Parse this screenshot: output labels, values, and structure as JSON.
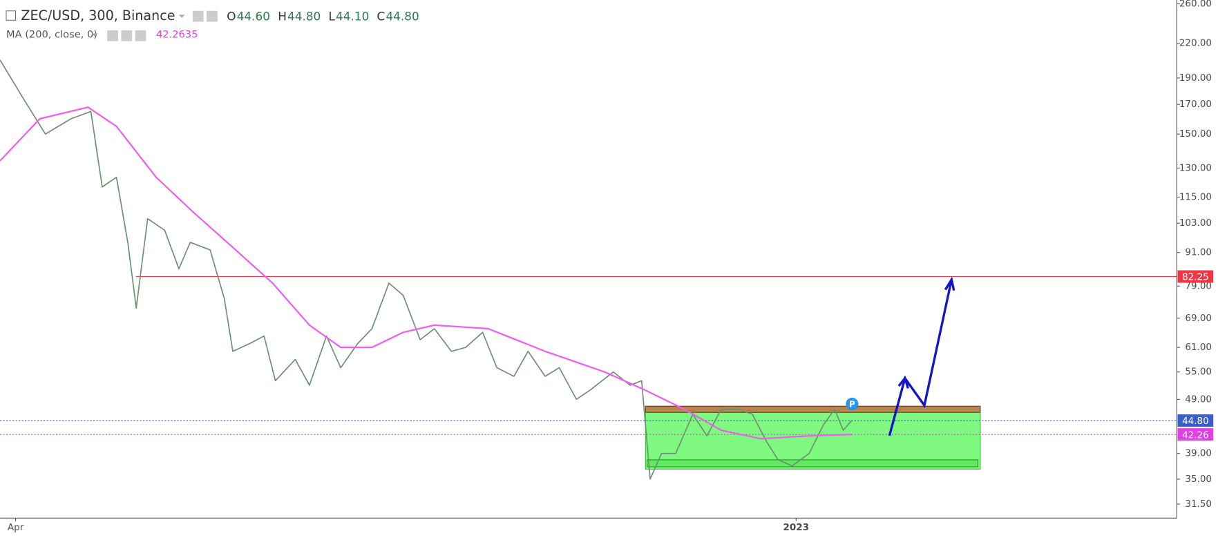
{
  "chart_data": {
    "type": "line",
    "title": "ZEC/USD, 300, Binance",
    "ohlc": [
      {
        "key": "O",
        "value": "44.60"
      },
      {
        "key": "H",
        "value": "44.80"
      },
      {
        "key": "L",
        "value": "44.10"
      },
      {
        "key": "C",
        "value": "44.80"
      }
    ],
    "indicator": {
      "name": "MA (200, close, 0)",
      "value": "42.2635",
      "color": "#e040e6"
    },
    "marker": "P",
    "log_scale": true,
    "grid": false,
    "xlim": [
      0,
      414.5
    ],
    "xticks": [
      {
        "value": 5.5,
        "label": "Apr"
      },
      {
        "value": 280.4,
        "label": "2023"
      }
    ],
    "ylim": [
      29.7,
      264
    ],
    "yticks": [
      {
        "value": 260,
        "label": "260.00"
      },
      {
        "value": 220,
        "label": "220.00"
      },
      {
        "value": 190,
        "label": "190.00"
      },
      {
        "value": 170,
        "label": "170.00"
      },
      {
        "value": 150,
        "label": "150.00"
      },
      {
        "value": 130,
        "label": "130.00"
      },
      {
        "value": 115,
        "label": "115.00"
      },
      {
        "value": 103,
        "label": "103.00"
      },
      {
        "value": 91,
        "label": "91.00"
      },
      {
        "value": 79,
        "label": "79.00"
      },
      {
        "value": 69,
        "label": "69.00"
      },
      {
        "value": 61,
        "label": "61.00"
      },
      {
        "value": 55,
        "label": "55.00"
      },
      {
        "value": 49,
        "label": "49.00"
      },
      {
        "value": 39,
        "label": "39.00"
      },
      {
        "value": 35,
        "label": "35.00"
      },
      {
        "value": 31.5,
        "label": "31.50"
      }
    ],
    "hlines": [
      {
        "value": 82.25,
        "color": "#f23645",
        "style": "solid"
      },
      {
        "value": 44.8,
        "label": "44.80",
        "color": "#3a5fc8",
        "style": "dotted"
      },
      {
        "value": 42.26,
        "color": "#e040e6",
        "style": "dotted"
      }
    ],
    "series": [
      {
        "name": "ZEC/USD",
        "color": "#6f8f73",
        "x": [
          0,
          8,
          16,
          25,
          32,
          36,
          41,
          45,
          48,
          52,
          58,
          63,
          67,
          74,
          79,
          82,
          88,
          93,
          97,
          104,
          109,
          115,
          120,
          126,
          131,
          137,
          142,
          148,
          153,
          159,
          164,
          170,
          175,
          181,
          186,
          192,
          197,
          203,
          208,
          216,
          222,
          226,
          229,
          233,
          238,
          244,
          249,
          254,
          260,
          265,
          270,
          274,
          279,
          285,
          290,
          294,
          297,
          300
        ],
        "values": [
          205,
          175,
          150,
          160,
          165,
          120,
          125,
          95,
          72,
          105,
          100,
          85,
          95,
          92,
          75,
          60,
          62,
          64,
          53,
          58,
          52,
          64,
          56,
          62,
          66,
          80,
          76,
          63,
          66,
          60,
          61,
          65,
          56,
          54,
          60,
          54,
          56,
          49,
          51,
          55,
          52,
          53,
          35,
          39,
          39,
          46,
          42,
          47,
          47,
          46,
          41,
          38,
          37,
          39,
          44,
          47,
          43,
          44.8
        ]
      },
      {
        "name": "MA (200, close, 0)",
        "color": "#ee5ff0",
        "x": [
          0,
          14,
          31,
          41,
          55,
          68,
          82,
          96,
          109,
          120,
          131,
          142,
          153,
          172,
          192,
          213,
          227,
          241,
          254,
          268,
          285,
          300
        ],
        "values": [
          134,
          160,
          168,
          155,
          125,
          108,
          93,
          80,
          67,
          61,
          61,
          65,
          67,
          66,
          60,
          55,
          51,
          47,
          43,
          41.5,
          42,
          42.26
        ]
      }
    ]
  }
}
